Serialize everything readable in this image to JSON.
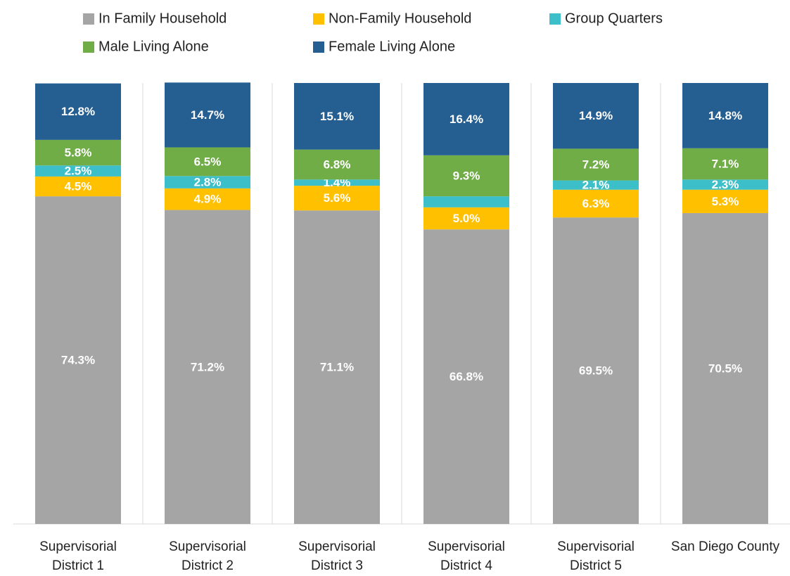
{
  "chart_data": {
    "type": "stacked_bar",
    "categories": [
      "Supervisorial District 1",
      "Supervisorial District 2",
      "Supervisorial District 3",
      "Supervisorial District 4",
      "Supervisorial District 5",
      "San Diego County"
    ],
    "ylim": [
      0,
      100
    ],
    "legend": "top",
    "series": [
      {
        "name": "In Family Household",
        "color": "#a5a5a5",
        "values": [
          74.3,
          71.2,
          71.1,
          66.8,
          69.5,
          70.5
        ],
        "value_labels": [
          "74.3%",
          "71.2%",
          "71.1%",
          "66.8%",
          "69.5%",
          "70.5%"
        ]
      },
      {
        "name": "Non-Family Household",
        "color": "#ffc000",
        "values": [
          4.5,
          4.9,
          5.6,
          5.0,
          6.3,
          5.3
        ],
        "value_labels": [
          "4.5%",
          "4.9%",
          "5.6%",
          "5.0%",
          "6.3%",
          "5.3%"
        ]
      },
      {
        "name": "Group Quarters",
        "color": "#3dbfc9",
        "values": [
          2.5,
          2.8,
          1.4,
          2.5,
          2.1,
          2.3
        ],
        "value_labels": [
          "2.5%",
          "2.8%",
          "1.4%",
          null,
          "2.1%",
          "2.3%"
        ]
      },
      {
        "name": "Male Living Alone",
        "color": "#70ad47",
        "values": [
          5.8,
          6.5,
          6.8,
          9.3,
          7.2,
          7.1
        ],
        "value_labels": [
          "5.8%",
          "6.5%",
          "6.8%",
          "9.3%",
          "7.2%",
          "7.1%"
        ]
      },
      {
        "name": "Female Living Alone",
        "color": "#255e91",
        "values": [
          12.8,
          14.7,
          15.1,
          16.4,
          14.9,
          14.8
        ],
        "value_labels": [
          "12.8%",
          "14.7%",
          "15.1%",
          "16.4%",
          "14.9%",
          "14.8%"
        ]
      }
    ]
  }
}
